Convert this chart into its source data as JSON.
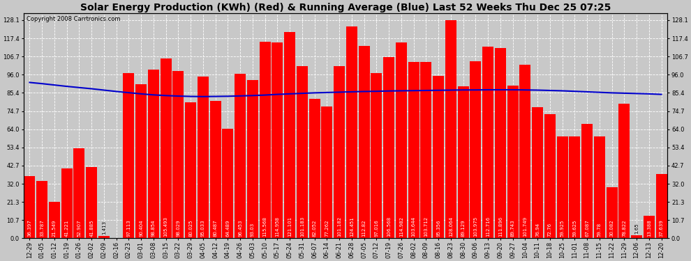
{
  "title": "Solar Energy Production (KWh) (Red) & Running Average (Blue) Last 52 Weeks Thu Dec 25 07:25",
  "copyright": "Copyright 2008 Carrtronics.com",
  "bar_color": "#FF0000",
  "line_color": "#0000CC",
  "bg_color": "#C8C8C8",
  "grid_color": "#FFFFFF",
  "categories": [
    "12-29",
    "01-05",
    "01-12",
    "01-19",
    "01-26",
    "02-02",
    "02-09",
    "02-16",
    "02-23",
    "03-01",
    "03-08",
    "03-15",
    "03-22",
    "03-29",
    "04-05",
    "04-12",
    "04-19",
    "04-26",
    "05-03",
    "05-10",
    "05-17",
    "05-24",
    "05-31",
    "06-07",
    "06-14",
    "06-21",
    "06-28",
    "07-05",
    "07-12",
    "07-19",
    "07-26",
    "08-02",
    "08-09",
    "08-16",
    "08-23",
    "08-30",
    "09-06",
    "09-13",
    "09-20",
    "09-27",
    "10-04",
    "10-11",
    "10-18",
    "10-25",
    "11-01",
    "11-08",
    "11-15",
    "11-22",
    "11-29",
    "12-06",
    "12-13",
    "12-20"
  ],
  "values": [
    36.397,
    33.787,
    21.549,
    41.221,
    52.907,
    41.885,
    1.413,
    0.0,
    97.113,
    90.404,
    98.854,
    105.493,
    98.029,
    80.025,
    95.033,
    80.487,
    64.489,
    96.453,
    93.03,
    115.568,
    114.958,
    121.101,
    101.183,
    82.052,
    77.262,
    101.182,
    124.451,
    112.82,
    97.016,
    106.568,
    114.982,
    103.644,
    103.712,
    95.356,
    128.064,
    89.129,
    103.975,
    112.716,
    111.896,
    89.743,
    101.749,
    76.94,
    72.76,
    59.925,
    59.625,
    67.087,
    59.78,
    30.082,
    78.822,
    1.65,
    13.388,
    37.639
  ],
  "running_avg": [
    91.5,
    90.8,
    90.0,
    89.2,
    88.5,
    87.8,
    87.0,
    86.2,
    85.5,
    84.8,
    84.2,
    83.8,
    83.5,
    83.3,
    83.2,
    83.3,
    83.4,
    83.6,
    83.8,
    84.1,
    84.5,
    84.8,
    85.1,
    85.4,
    85.6,
    85.8,
    86.0,
    86.2,
    86.3,
    86.5,
    86.6,
    86.7,
    86.8,
    86.9,
    87.0,
    87.1,
    87.1,
    87.2,
    87.2,
    87.2,
    87.1,
    87.0,
    86.8,
    86.6,
    86.3,
    86.0,
    85.7,
    85.4,
    85.2,
    85.0,
    84.8,
    84.5
  ],
  "yticks": [
    0.0,
    10.7,
    21.3,
    32.0,
    42.7,
    53.4,
    64.0,
    74.7,
    85.4,
    96.0,
    106.7,
    117.4,
    128.1
  ],
  "ymax": 132,
  "title_fontsize": 10,
  "copyright_fontsize": 6,
  "tick_fontsize": 6,
  "bar_value_fontsize": 5
}
